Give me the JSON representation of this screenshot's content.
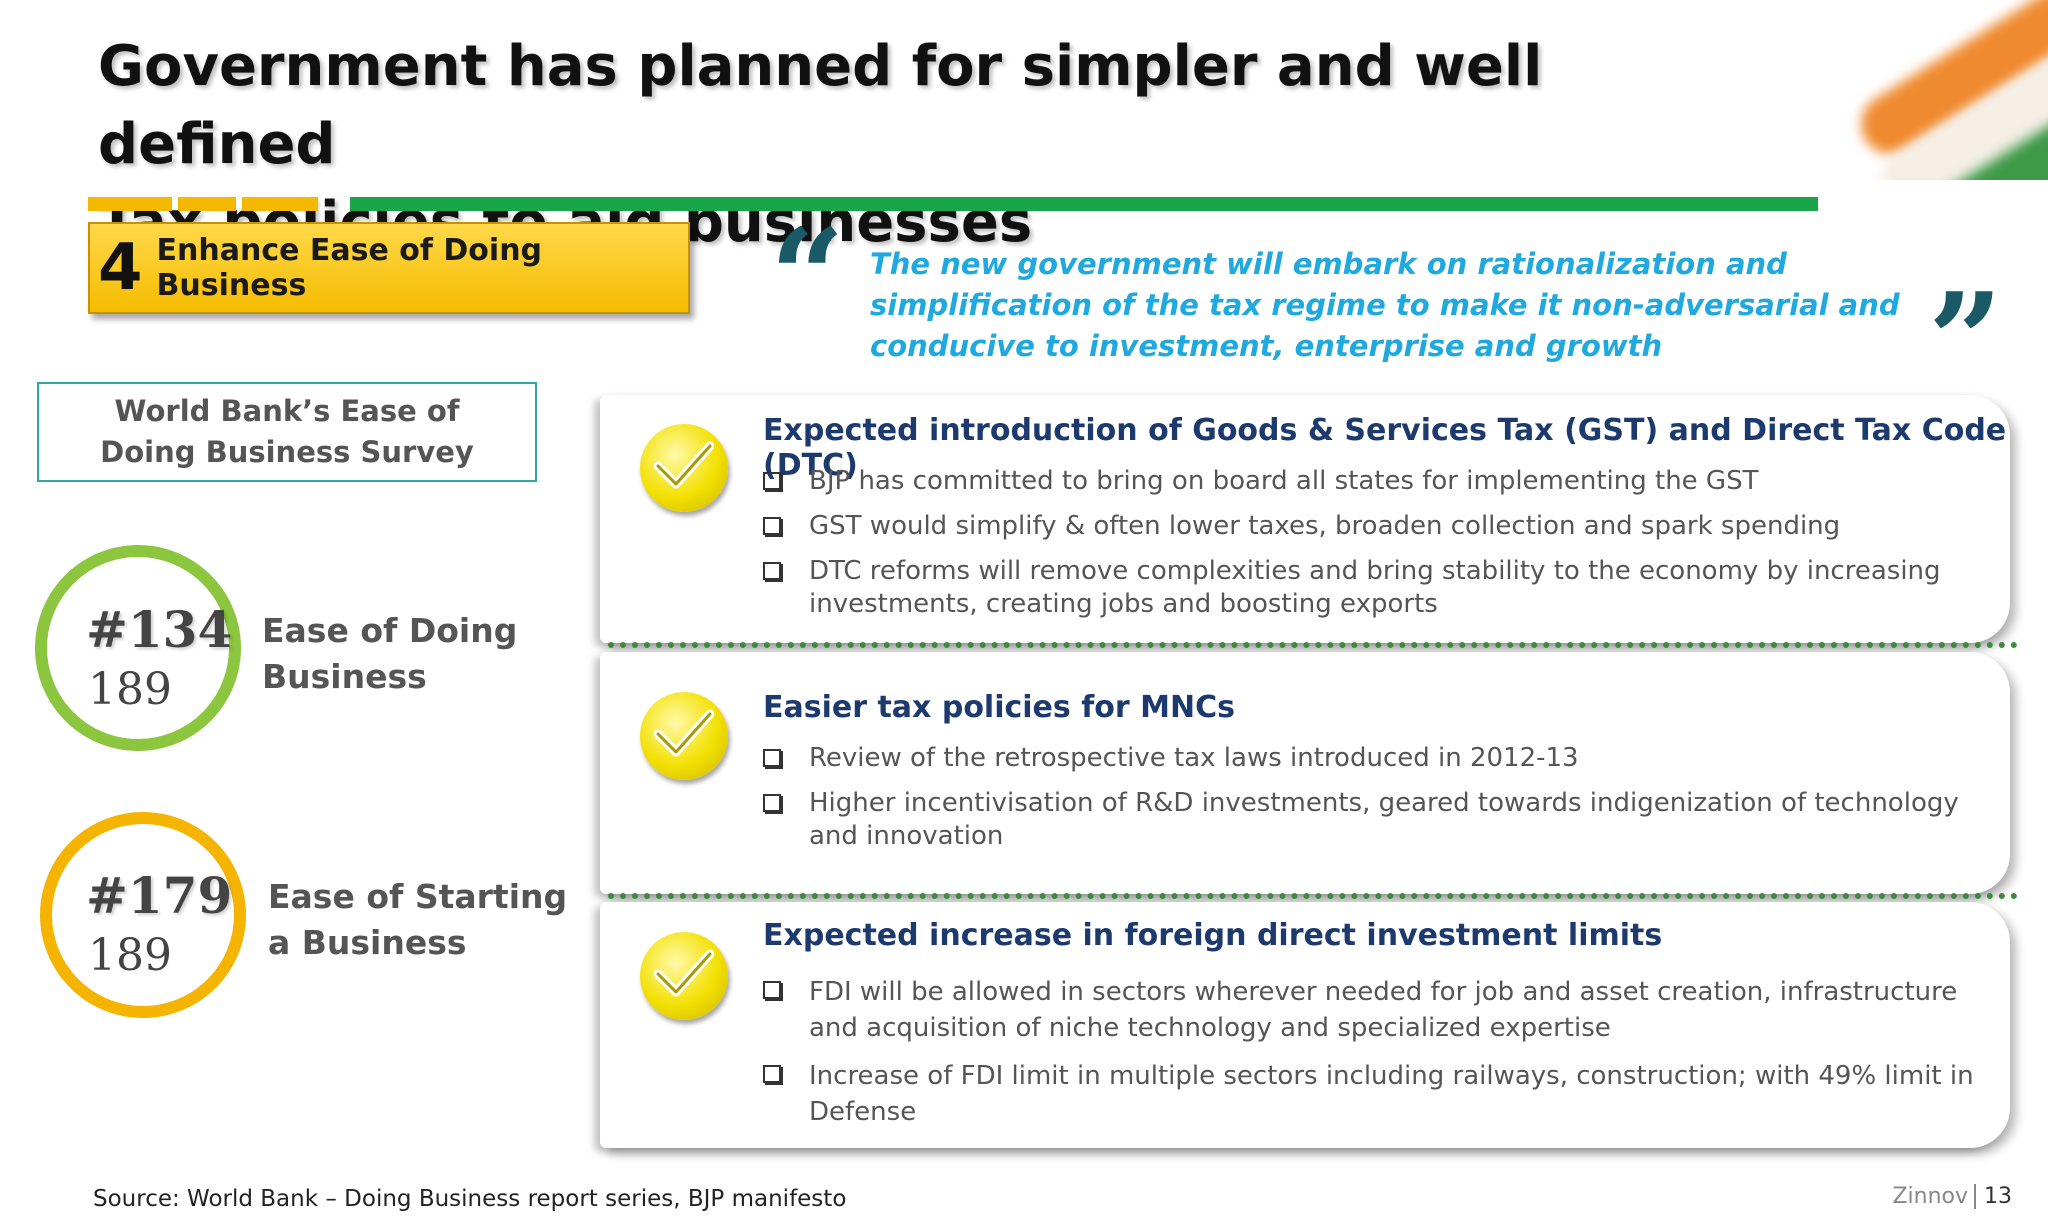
{
  "title": {
    "line1": "Government has planned for simpler and well defined",
    "line2": "Tax policies to aid businesses"
  },
  "section": {
    "number": "4",
    "label": "Enhance Ease of Doing Business"
  },
  "quote": {
    "open": "“",
    "close": "”",
    "text": "The new government will embark on rationalization and simplification of the tax regime to make it non-adversarial and conducive to investment, enterprise and growth"
  },
  "survey": {
    "title": "World Bank’s Ease of Doing Business Survey"
  },
  "rankings": [
    {
      "rank": "#134",
      "total": "189",
      "label_line1": "Ease of Doing",
      "label_line2": "Business",
      "ring_color": "#8cc63e"
    },
    {
      "rank": "#179",
      "total": "189",
      "label_line1": "Ease of Starting",
      "label_line2": "a Business",
      "ring_color": "#f4b400"
    }
  ],
  "cards": [
    {
      "title": "Expected introduction of Goods & Services Tax (GST) and Direct Tax Code (DTC)",
      "bullets": [
        "BJP has committed to bring on board all states for implementing the GST",
        "GST would simplify & often lower taxes, broaden collection and spark spending",
        "DTC reforms will remove complexities and bring stability to the economy by increasing investments, creating jobs and boosting exports"
      ]
    },
    {
      "title": "Easier tax policies for MNCs",
      "bullets": [
        "Review of the retrospective tax laws introduced in 2012-13",
        "Higher incentivisation of R&D investments, geared towards indigenization of technology and innovation"
      ]
    },
    {
      "title": "Expected increase in foreign direct investment limits",
      "bullets": [
        "FDI will be allowed in sectors wherever needed for job and asset creation, infrastructure and acquisition of niche technology and specialized expertise",
        "Increase of FDI limit in multiple sectors including railways, construction; with 49% limit in Defense"
      ]
    }
  ],
  "footer": {
    "source": "Source: World Bank – Doing Business report series, BJP manifesto",
    "brand": "Zinnov",
    "page": "13"
  }
}
